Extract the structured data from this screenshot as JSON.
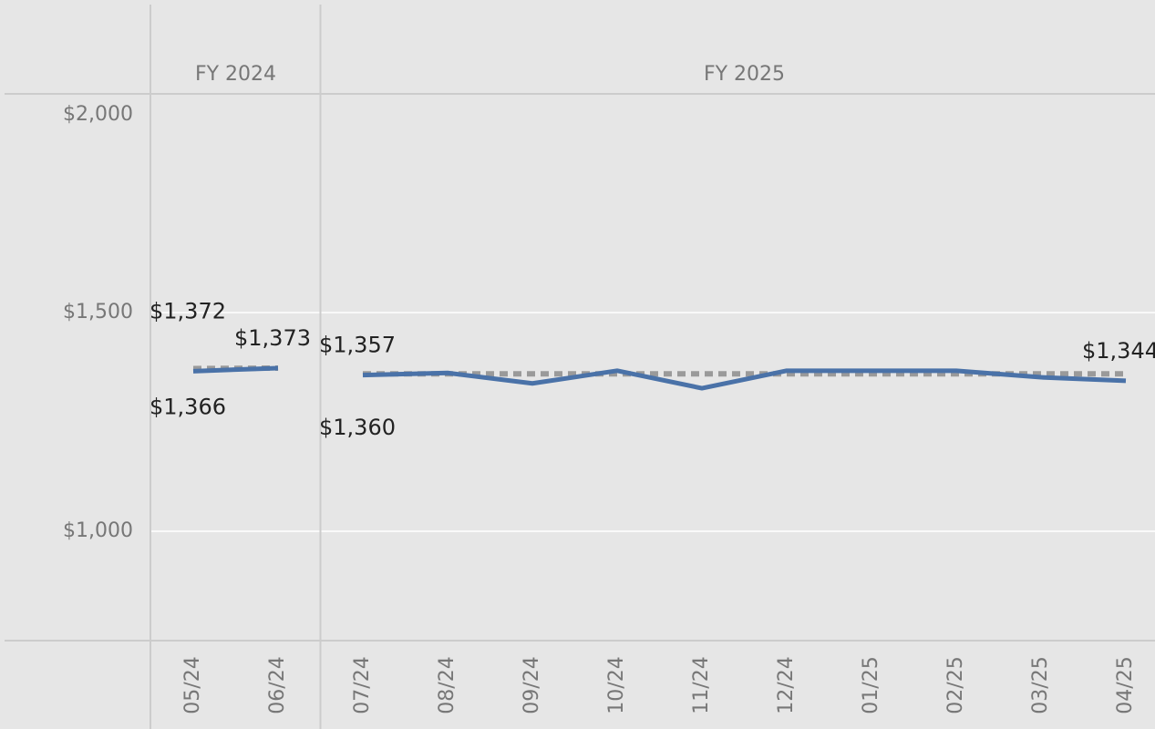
{
  "chart_data": {
    "type": "line",
    "categories": [
      "05/24",
      "06/24",
      "07/24",
      "08/24",
      "09/24",
      "10/24",
      "11/24",
      "12/24",
      "01/25",
      "02/25",
      "03/25",
      "04/25"
    ],
    "category_groups": [
      "FY 2024",
      "FY 2024",
      "FY 2025",
      "FY 2025",
      "FY 2025",
      "FY 2025",
      "FY 2025",
      "FY 2025",
      "FY 2025",
      "FY 2025",
      "FY 2025",
      "FY 2025"
    ],
    "series": [
      {
        "color": "#4a72a8",
        "style": "solid",
        "values": [
          1366,
          1373,
          1357,
          1362,
          1338,
          1367,
          1327,
          1367,
          1367,
          1367,
          1352,
          1344
        ],
        "value_labels": [
          "$1,366",
          "$1,373",
          "$1,357",
          null,
          null,
          null,
          null,
          null,
          null,
          null,
          null,
          "$1,344"
        ]
      },
      {
        "color": "#9a9a9a",
        "style": "dashed",
        "values": [
          1372,
          1373,
          1360,
          1360,
          1360,
          1360,
          1360,
          1360,
          1360,
          1360,
          1360,
          1360
        ],
        "value_labels": [
          "$1,372",
          null,
          "$1,360",
          null,
          null,
          null,
          null,
          null,
          null,
          null,
          null,
          null
        ]
      }
    ],
    "ylim": [
      750,
      2000
    ],
    "yticks": [
      {
        "value": 1000,
        "label": "$1,000"
      },
      {
        "value": 1500,
        "label": "$1,500"
      },
      {
        "value": 2000,
        "label": "$2,000"
      }
    ],
    "grid": true
  }
}
